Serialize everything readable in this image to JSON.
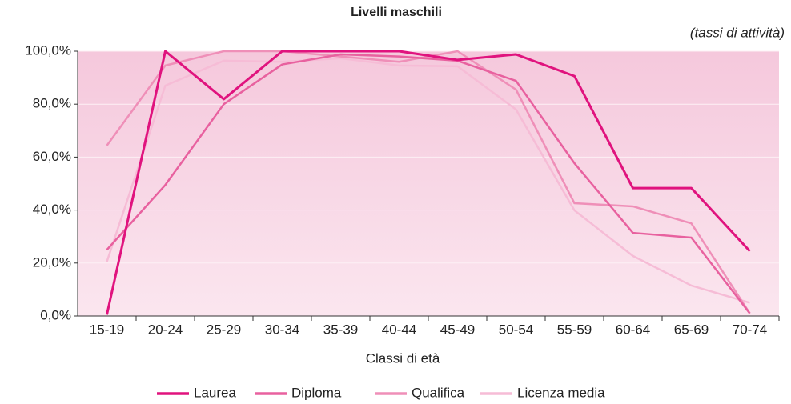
{
  "chart_data": {
    "type": "line",
    "title": "Livelli maschili",
    "subtitle": "(tassi di attività)",
    "x_label": "Classi di età",
    "categories": [
      "15-19",
      "20-24",
      "25-29",
      "30-34",
      "35-39",
      "40-44",
      "45-49",
      "50-54",
      "55-59",
      "60-64",
      "65-69",
      "70-74"
    ],
    "series": [
      {
        "name": "Laurea",
        "color": "#e0137e",
        "values": [
          0.5,
          100,
          81.9,
          100,
          100,
          100,
          96.7,
          98.8,
          90.6,
          48.3,
          48.3,
          24.5
        ]
      },
      {
        "name": "Diploma",
        "color": "#e8619f",
        "values": [
          25,
          49.5,
          80,
          95,
          98.8,
          98,
          96.4,
          88.8,
          57.7,
          31.4,
          29.6,
          1
        ]
      },
      {
        "name": "Qualifica",
        "color": "#ef8fb8",
        "values": [
          64.4,
          94.6,
          100,
          100,
          98,
          96,
          100,
          85.5,
          42.6,
          41.4,
          35,
          1
        ]
      },
      {
        "name": "Licenza media",
        "color": "#f6bcd6",
        "values": [
          20.5,
          87,
          96.4,
          96,
          97.3,
          94.6,
          94.3,
          78,
          39.9,
          22.7,
          11.5,
          5
        ]
      }
    ],
    "ylim": [
      0,
      100
    ],
    "yticks": [
      {
        "value": 0,
        "label": "0,0%"
      },
      {
        "value": 20,
        "label": "20,0%"
      },
      {
        "value": 40,
        "label": "40,0%"
      },
      {
        "value": 60,
        "label": "60,0%"
      },
      {
        "value": 80,
        "label": "80,0%"
      },
      {
        "value": 100,
        "label": "100,0%"
      }
    ],
    "grid": true
  }
}
